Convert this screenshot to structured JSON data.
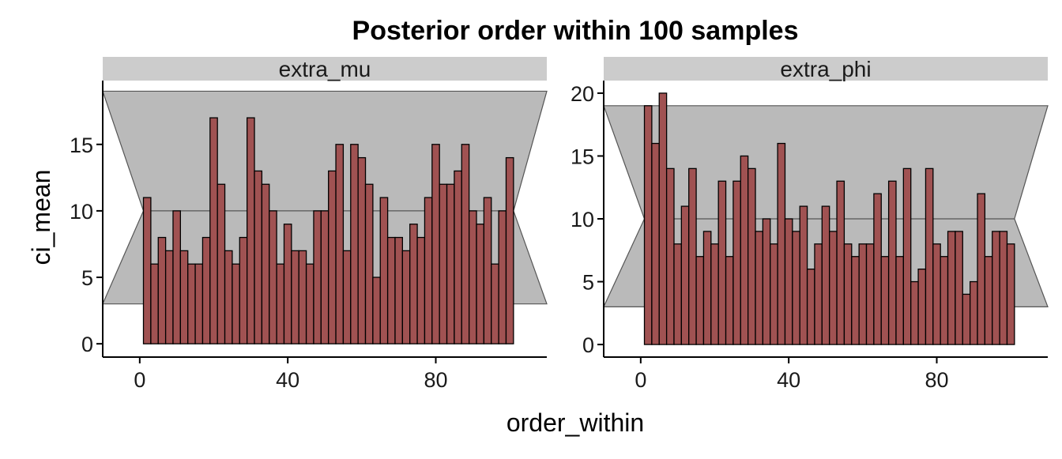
{
  "chart_data": {
    "type": "bar",
    "title": "Posterior order within 100 samples",
    "xlabel": "order_within",
    "ylabel": "ci_mean",
    "xlim": [
      -10,
      110
    ],
    "xticks": [
      0,
      40,
      80
    ],
    "bin_starts": [
      1,
      3,
      5,
      7,
      9,
      11,
      13,
      15,
      17,
      19,
      21,
      23,
      25,
      27,
      29,
      31,
      33,
      35,
      37,
      39,
      41,
      43,
      45,
      47,
      49,
      51,
      53,
      55,
      57,
      59,
      61,
      63,
      65,
      67,
      69,
      71,
      73,
      75,
      77,
      79,
      81,
      83,
      85,
      87,
      89,
      91,
      93,
      95,
      97,
      99
    ],
    "bin_width": 2,
    "ci_band": {
      "x_left": -10,
      "x_mid_left": 1,
      "x_mid_right": 101,
      "x_right": 110,
      "mid": 10
    },
    "panels": [
      {
        "strip_label": "extra_mu",
        "ylim": [
          -1,
          19.8
        ],
        "yticks": [
          0,
          5,
          10,
          15
        ],
        "ci_band": {
          "upper": 19,
          "lower": 3
        },
        "values": [
          11,
          6,
          8,
          7,
          10,
          7,
          6,
          6,
          8,
          17,
          12,
          7,
          6,
          8,
          17,
          13,
          12,
          10,
          6,
          9,
          7,
          7,
          6,
          10,
          10,
          13,
          15,
          7,
          15,
          14,
          12,
          5,
          11,
          8,
          8,
          7,
          9,
          8,
          11,
          15,
          12,
          12,
          13,
          15,
          10,
          9,
          11,
          6,
          10,
          14
        ]
      },
      {
        "strip_label": "extra_phi",
        "ylim": [
          -1,
          21
        ],
        "yticks": [
          0,
          5,
          10,
          15,
          20
        ],
        "ci_band": {
          "upper": 19,
          "lower": 3
        },
        "values": [
          19,
          16,
          20,
          14,
          8,
          11,
          14,
          7,
          9,
          8,
          13,
          7,
          13,
          15,
          14,
          9,
          10,
          8,
          16,
          10,
          9,
          11,
          6,
          8,
          11,
          9,
          13,
          8,
          7,
          8,
          8,
          12,
          7,
          13,
          7,
          14,
          5,
          6,
          14,
          8,
          7,
          9,
          9,
          4,
          5,
          12,
          7,
          9,
          9,
          8
        ]
      }
    ]
  }
}
